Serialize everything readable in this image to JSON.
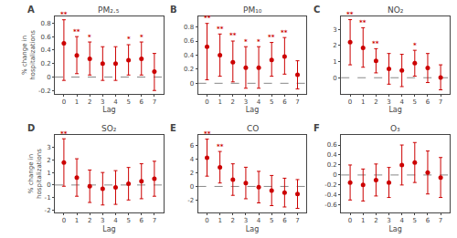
{
  "chart_data": [
    {
      "type": "scatter",
      "label": "A",
      "title": "PM₂.₅",
      "xlabel": "Lag",
      "ylabel": "% change in\nhospitalizations",
      "x": [
        0,
        1,
        2,
        3,
        4,
        5,
        6,
        7
      ],
      "values": [
        0.5,
        0.32,
        0.27,
        0.2,
        0.2,
        0.25,
        0.27,
        0.08
      ],
      "ylo": [
        -0.05,
        0.05,
        0.03,
        -0.05,
        -0.05,
        0.03,
        0.03,
        -0.2
      ],
      "yhi": [
        0.85,
        0.6,
        0.52,
        0.45,
        0.45,
        0.48,
        0.52,
        0.35
      ],
      "annotations": [
        {
          "x": 0,
          "text": "**",
          "color": "#cc0000"
        },
        {
          "x": 1,
          "text": "**",
          "color": "#cc0000"
        },
        {
          "x": 2,
          "text": "*",
          "color": "#cc0000"
        },
        {
          "x": 5,
          "text": "*",
          "color": "#cc0000"
        },
        {
          "x": 6,
          "text": "*",
          "color": "#cc0000"
        }
      ],
      "xlim": [
        -0.7,
        7.7
      ],
      "xticks": [
        0,
        1,
        2,
        3,
        4,
        5,
        6,
        7
      ],
      "ylim": [
        -0.25,
        0.9
      ],
      "yticks": [
        -0.2,
        0,
        0.2,
        0.4,
        0.6,
        0.8
      ],
      "hline": 0,
      "color": "#cc0000",
      "grid": false
    },
    {
      "type": "scatter",
      "label": "B",
      "title": "PM₁₀",
      "xlabel": "Lag",
      "x": [
        0,
        1,
        2,
        3,
        4,
        5,
        6,
        7
      ],
      "values": [
        0.52,
        0.4,
        0.3,
        0.22,
        0.22,
        0.33,
        0.38,
        0.12
      ],
      "ylo": [
        0.05,
        0.1,
        0.02,
        -0.07,
        -0.07,
        0.1,
        0.13,
        -0.08
      ],
      "yhi": [
        0.85,
        0.7,
        0.6,
        0.52,
        0.52,
        0.58,
        0.65,
        0.32
      ],
      "annotations": [
        {
          "x": 0,
          "text": "**",
          "color": "#cc0000"
        },
        {
          "x": 1,
          "text": "**",
          "color": "#cc0000"
        },
        {
          "x": 2,
          "text": "**",
          "color": "#cc0000"
        },
        {
          "x": 3,
          "text": "*",
          "color": "#cc0000"
        },
        {
          "x": 4,
          "text": "*",
          "color": "#cc0000"
        },
        {
          "x": 5,
          "text": "**",
          "color": "#cc0000"
        },
        {
          "x": 6,
          "text": "**",
          "color": "#cc0000"
        }
      ],
      "xlim": [
        -0.7,
        7.7
      ],
      "xticks": [
        0,
        1,
        2,
        3,
        4,
        5,
        6,
        7
      ],
      "ylim": [
        -0.15,
        0.95
      ],
      "yticks": [
        0,
        0.2,
        0.4,
        0.6,
        0.8
      ],
      "hline": 0,
      "color": "#cc0000",
      "grid": false
    },
    {
      "type": "scatter",
      "label": "C",
      "title": "NO₂",
      "xlabel": "Lag",
      "x": [
        0,
        1,
        2,
        3,
        4,
        5,
        6,
        7
      ],
      "values": [
        2.2,
        1.85,
        1.05,
        0.55,
        0.45,
        0.9,
        0.6,
        0.02
      ],
      "ylo": [
        0.8,
        0.65,
        0.3,
        -0.4,
        -0.55,
        0.1,
        -0.3,
        -0.75
      ],
      "yhi": [
        3.6,
        3.1,
        1.8,
        1.5,
        1.45,
        1.7,
        1.5,
        0.8
      ],
      "annotations": [
        {
          "x": 0,
          "text": "**",
          "color": "#cc0000"
        },
        {
          "x": 1,
          "text": "**",
          "color": "#cc0000"
        },
        {
          "x": 2,
          "text": "**",
          "color": "#cc0000"
        },
        {
          "x": 5,
          "text": "*",
          "color": "#cc0000"
        }
      ],
      "xlim": [
        -0.7,
        7.7
      ],
      "xticks": [
        0,
        1,
        2,
        3,
        4,
        5,
        6,
        7
      ],
      "ylim": [
        -1.0,
        3.8
      ],
      "yticks": [
        0,
        1,
        2,
        3
      ],
      "hline": 0,
      "color": "#cc0000",
      "grid": false
    },
    {
      "type": "scatter",
      "label": "D",
      "title": "SO₂",
      "xlabel": "Lag",
      "ylabel": "% change in\nhospitalizations",
      "x": [
        0,
        1,
        2,
        3,
        4,
        5,
        6,
        7
      ],
      "values": [
        1.8,
        0.6,
        -0.1,
        -0.3,
        -0.2,
        0.1,
        0.3,
        0.5
      ],
      "ylo": [
        -0.1,
        -0.9,
        -1.4,
        -1.6,
        -1.55,
        -1.2,
        -1.1,
        -0.9
      ],
      "yhi": [
        3.7,
        2.1,
        1.2,
        1.0,
        1.15,
        1.4,
        1.7,
        1.9
      ],
      "annotations": [
        {
          "x": 0,
          "text": "**",
          "color": "#cc0000"
        }
      ],
      "xlim": [
        -0.7,
        7.7
      ],
      "xticks": [
        0,
        1,
        2,
        3,
        4,
        5,
        6,
        7
      ],
      "ylim": [
        -2.2,
        4.0
      ],
      "yticks": [
        -2,
        -1,
        0,
        1,
        2,
        3
      ],
      "hline": 0,
      "color": "#cc0000",
      "grid": false
    },
    {
      "type": "scatter",
      "label": "E",
      "title": "CO",
      "xlabel": "Lag",
      "x": [
        0,
        1,
        2,
        3,
        4,
        5,
        6,
        7
      ],
      "values": [
        4.2,
        2.8,
        1.0,
        0.5,
        -0.1,
        -0.6,
        -0.9,
        -1.1
      ],
      "ylo": [
        1.5,
        0.5,
        -1.3,
        -1.8,
        -2.4,
        -2.8,
        -3.0,
        -3.2
      ],
      "yhi": [
        6.9,
        5.1,
        3.3,
        2.8,
        2.2,
        1.6,
        1.2,
        1.0
      ],
      "annotations": [
        {
          "x": 0,
          "text": "**",
          "color": "#cc0000"
        },
        {
          "x": 1,
          "text": "**",
          "color": "#cc0000"
        }
      ],
      "xlim": [
        -0.7,
        7.7
      ],
      "xticks": [
        0,
        1,
        2,
        3,
        4,
        5,
        6,
        7
      ],
      "ylim": [
        -3.8,
        7.5
      ],
      "yticks": [
        -2,
        0,
        2,
        4,
        6
      ],
      "hline": 0,
      "color": "#cc0000",
      "grid": false
    },
    {
      "type": "scatter",
      "label": "F",
      "title": "O₃",
      "xlabel": "Lag",
      "x": [
        0,
        1,
        2,
        3,
        4,
        5,
        6,
        7
      ],
      "values": [
        -0.15,
        -0.2,
        -0.1,
        -0.15,
        0.2,
        0.25,
        0.05,
        -0.05
      ],
      "ylo": [
        -0.5,
        -0.52,
        -0.42,
        -0.45,
        -0.2,
        -0.15,
        -0.38,
        -0.45
      ],
      "yhi": [
        0.2,
        0.12,
        0.22,
        0.15,
        0.6,
        0.65,
        0.48,
        0.35
      ],
      "annotations": [],
      "xlim": [
        -0.7,
        7.7
      ],
      "xticks": [
        0,
        1,
        2,
        3,
        4,
        5,
        6,
        7
      ],
      "ylim": [
        -0.75,
        0.8
      ],
      "yticks": [
        -0.6,
        -0.4,
        -0.2,
        0,
        0.2,
        0.4,
        0.6
      ],
      "hline": 0,
      "color": "#cc0000",
      "grid": false
    }
  ]
}
